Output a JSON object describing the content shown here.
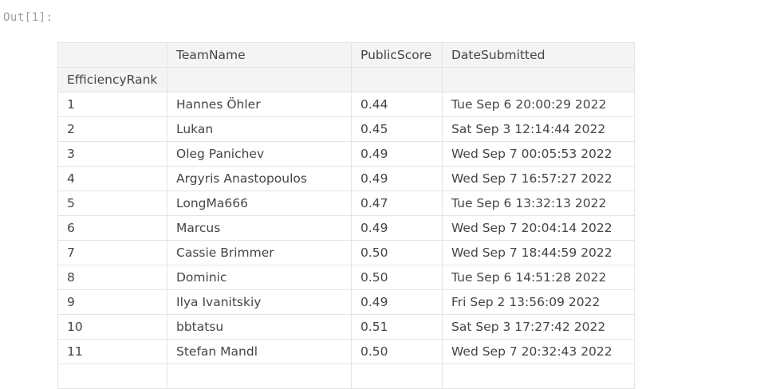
{
  "output": {
    "prompt": "Out[1]:"
  },
  "table": {
    "columns": [
      "",
      "TeamName",
      "PublicScore",
      "DateSubmitted"
    ],
    "index_name": "EfficiencyRank",
    "rows": [
      {
        "rank": "1",
        "team": "Hannes Öhler",
        "score": "0.44",
        "date": "Tue Sep 6 20:00:29 2022"
      },
      {
        "rank": "2",
        "team": "Lukan",
        "score": "0.45",
        "date": "Sat Sep 3 12:14:44 2022"
      },
      {
        "rank": "3",
        "team": "Oleg Panichev",
        "score": "0.49",
        "date": "Wed Sep 7 00:05:53 2022"
      },
      {
        "rank": "4",
        "team": "Argyris Anastopoulos",
        "score": "0.49",
        "date": "Wed Sep 7 16:57:27 2022"
      },
      {
        "rank": "5",
        "team": "LongMa666",
        "score": "0.47",
        "date": "Tue Sep 6 13:32:13 2022"
      },
      {
        "rank": "6",
        "team": "Marcus",
        "score": "0.49",
        "date": "Wed Sep 7 20:04:14 2022"
      },
      {
        "rank": "7",
        "team": "Cassie Brimmer",
        "score": "0.50",
        "date": "Wed Sep 7 18:44:59 2022"
      },
      {
        "rank": "8",
        "team": "Dominic",
        "score": "0.50",
        "date": "Tue Sep 6 14:51:28 2022"
      },
      {
        "rank": "9",
        "team": "Ilya Ivanitskiy",
        "score": "0.49",
        "date": "Fri Sep 2 13:56:09 2022"
      },
      {
        "rank": "10",
        "team": "bbtatsu",
        "score": "0.51",
        "date": "Sat Sep 3 17:27:42 2022"
      },
      {
        "rank": "11",
        "team": "Stefan Mandl",
        "score": "0.50",
        "date": "Wed Sep 7 20:32:43 2022"
      },
      {
        "rank": "",
        "team": "",
        "score": "",
        "date": ""
      }
    ]
  }
}
